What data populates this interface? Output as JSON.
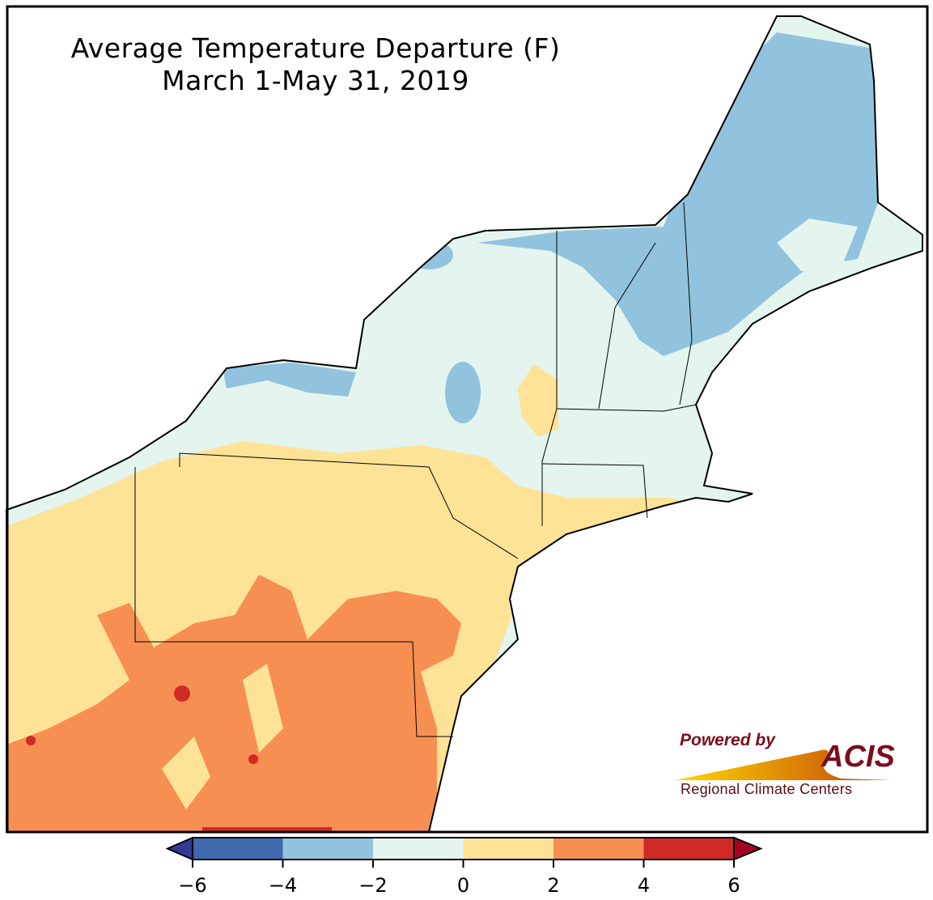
{
  "title": "Average Temperature Departure (F)",
  "subtitle": "March 1-May 31, 2019",
  "legend": {
    "ticks": [
      "−6",
      "−4",
      "−2",
      "0",
      "2",
      "4",
      "6"
    ],
    "bins": [
      {
        "range": [
          -6,
          -4
        ],
        "color": "#4169ae"
      },
      {
        "range": [
          -4,
          -2
        ],
        "color": "#91c3df"
      },
      {
        "range": [
          -2,
          0
        ],
        "color": "#e4f4ee"
      },
      {
        "range": [
          0,
          2
        ],
        "color": "#fee396"
      },
      {
        "range": [
          2,
          4
        ],
        "color": "#f88f52"
      },
      {
        "range": [
          4,
          6
        ],
        "color": "#d02a27"
      }
    ],
    "under_color": "#323a95",
    "over_color": "#a50226"
  },
  "logo": {
    "powered": "Powered by",
    "name": "ACIS",
    "org": "Regional Climate Centers"
  }
}
